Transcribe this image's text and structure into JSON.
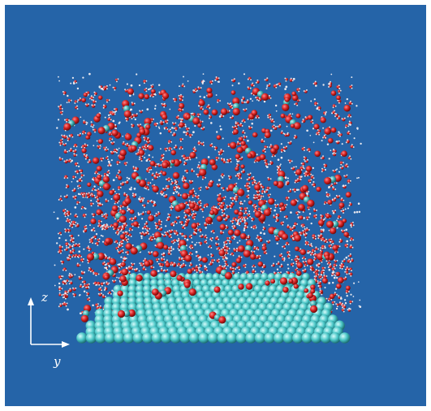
{
  "figure": {
    "description_free": true,
    "background_color": "#2564a8",
    "substrate_color": "#49c6c6",
    "oxygen_color": "#d42020",
    "carbon_color": "#3fb0b3",
    "hydrogen_color": "#f0f0f0"
  },
  "axes": {
    "z_label": "z",
    "y_label": "y",
    "color": "#ffffff"
  }
}
